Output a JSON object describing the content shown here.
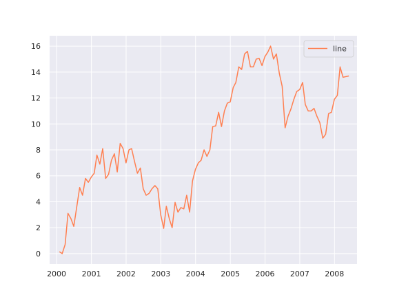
{
  "chart_data": {
    "type": "line",
    "title": "",
    "xlabel": "",
    "ylabel": "",
    "grid": true,
    "legend_placement": "top-right",
    "colors": {
      "line": "#ff7f50",
      "background": "#eaeaf2",
      "grid": "#ffffff"
    },
    "xlim": [
      "1999-10-20",
      "2008-08-25"
    ],
    "ylim": [
      -0.8,
      16.8
    ],
    "x_ticks": [
      {
        "value": "2000-01-01",
        "label": "2000"
      },
      {
        "value": "2001-01-01",
        "label": "2001"
      },
      {
        "value": "2002-01-01",
        "label": "2002"
      },
      {
        "value": "2003-01-01",
        "label": "2003"
      },
      {
        "value": "2004-01-01",
        "label": "2004"
      },
      {
        "value": "2005-01-01",
        "label": "2005"
      },
      {
        "value": "2006-01-01",
        "label": "2006"
      },
      {
        "value": "2007-01-01",
        "label": "2007"
      },
      {
        "value": "2008-01-01",
        "label": "2008"
      }
    ],
    "y_ticks": [
      {
        "value": 0,
        "label": "0"
      },
      {
        "value": 2,
        "label": "2"
      },
      {
        "value": 4,
        "label": "4"
      },
      {
        "value": 6,
        "label": "6"
      },
      {
        "value": 8,
        "label": "8"
      },
      {
        "value": 10,
        "label": "10"
      },
      {
        "value": 12,
        "label": "12"
      },
      {
        "value": 14,
        "label": "14"
      },
      {
        "value": 16,
        "label": "16"
      }
    ],
    "series": [
      {
        "name": "line",
        "x": [
          "2000-01-31",
          "2000-02-29",
          "2000-03-31",
          "2000-04-30",
          "2000-05-31",
          "2000-06-30",
          "2000-07-31",
          "2000-08-31",
          "2000-09-30",
          "2000-10-31",
          "2000-11-30",
          "2000-12-31",
          "2001-01-31",
          "2001-02-28",
          "2001-03-31",
          "2001-04-30",
          "2001-05-31",
          "2001-06-30",
          "2001-07-31",
          "2001-08-31",
          "2001-09-30",
          "2001-10-31",
          "2001-11-30",
          "2001-12-31",
          "2002-01-31",
          "2002-02-28",
          "2002-03-31",
          "2002-04-30",
          "2002-05-31",
          "2002-06-30",
          "2002-07-31",
          "2002-08-31",
          "2002-09-30",
          "2002-10-31",
          "2002-11-30",
          "2002-12-31",
          "2003-01-31",
          "2003-02-28",
          "2003-03-31",
          "2003-04-30",
          "2003-05-31",
          "2003-06-30",
          "2003-07-31",
          "2003-08-31",
          "2003-09-30",
          "2003-10-31",
          "2003-11-30",
          "2003-12-31",
          "2004-01-31",
          "2004-02-29",
          "2004-03-31",
          "2004-04-30",
          "2004-05-31",
          "2004-06-30",
          "2004-07-31",
          "2004-08-31",
          "2004-09-30",
          "2004-10-31",
          "2004-11-30",
          "2004-12-31",
          "2005-01-31",
          "2005-02-28",
          "2005-03-31",
          "2005-04-30",
          "2005-05-31",
          "2005-06-30",
          "2005-07-31",
          "2005-08-31",
          "2005-09-30",
          "2005-10-31",
          "2005-11-30",
          "2005-12-31",
          "2006-01-31",
          "2006-02-28",
          "2006-03-31",
          "2006-04-30",
          "2006-05-31",
          "2006-06-30",
          "2006-07-31",
          "2006-08-31",
          "2006-09-30",
          "2006-10-31",
          "2006-11-30",
          "2006-12-31",
          "2007-01-31",
          "2007-02-28",
          "2007-03-31",
          "2007-04-30",
          "2007-05-31",
          "2007-06-30",
          "2007-07-31",
          "2007-08-31",
          "2007-09-30",
          "2007-10-31",
          "2007-11-30",
          "2007-12-31",
          "2008-01-31",
          "2008-02-29",
          "2008-03-31",
          "2008-04-30",
          "2008-05-31"
        ],
        "y": [
          0.15,
          0.0,
          0.7,
          3.1,
          2.7,
          2.1,
          3.6,
          5.1,
          4.5,
          5.8,
          5.5,
          5.9,
          6.2,
          7.6,
          6.9,
          8.1,
          5.8,
          6.1,
          7.2,
          7.7,
          6.3,
          8.5,
          8.1,
          7.0,
          8.0,
          8.1,
          7.1,
          6.2,
          6.6,
          5.0,
          4.5,
          4.65,
          5.0,
          5.25,
          5.0,
          3.0,
          1.95,
          3.65,
          2.7,
          2.0,
          3.95,
          3.2,
          3.55,
          3.45,
          4.5,
          3.2,
          5.6,
          6.5,
          7.0,
          7.2,
          8.0,
          7.5,
          8.0,
          9.8,
          9.85,
          10.9,
          9.8,
          11.0,
          11.6,
          11.7,
          12.8,
          13.2,
          14.4,
          14.2,
          15.4,
          15.6,
          14.4,
          14.4,
          15.0,
          15.05,
          14.5,
          15.2,
          15.55,
          16.0,
          15.0,
          15.4,
          13.9,
          12.9,
          9.7,
          10.6,
          11.15,
          11.9,
          12.5,
          12.65,
          13.2,
          11.5,
          11.0,
          11.0,
          11.2,
          10.6,
          10.1,
          8.9,
          9.2,
          10.8,
          10.9,
          11.9,
          12.2,
          14.4,
          13.6,
          13.65,
          13.7
        ]
      }
    ]
  }
}
